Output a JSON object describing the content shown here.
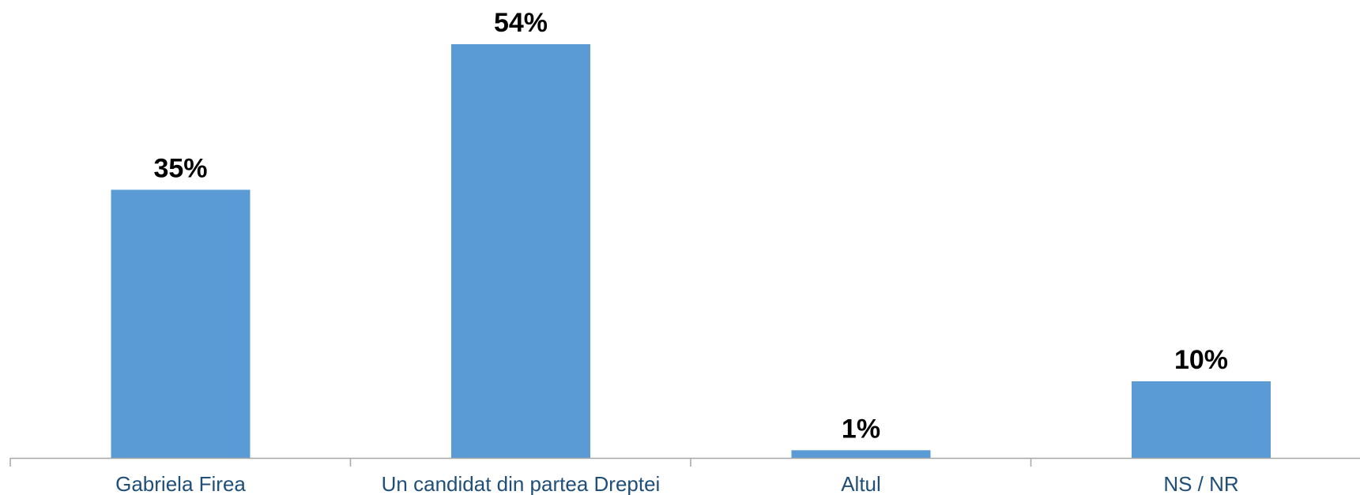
{
  "chart_data": {
    "type": "bar",
    "categories": [
      "Gabriela Firea",
      "Un candidat din partea Dreptei",
      "Altul",
      "NS / NR"
    ],
    "values": [
      35,
      54,
      1,
      10
    ],
    "data_labels": [
      "35%",
      "54%",
      "1%",
      "10%"
    ],
    "title": "",
    "xlabel": "",
    "ylabel": "",
    "ylim": [
      0,
      54
    ],
    "grid": false,
    "legend": "none",
    "colors": {
      "bar": "#5b9bd5",
      "axis": "#a6a6a6",
      "category_text": "#1f4e79",
      "value_text": "#000000"
    }
  }
}
